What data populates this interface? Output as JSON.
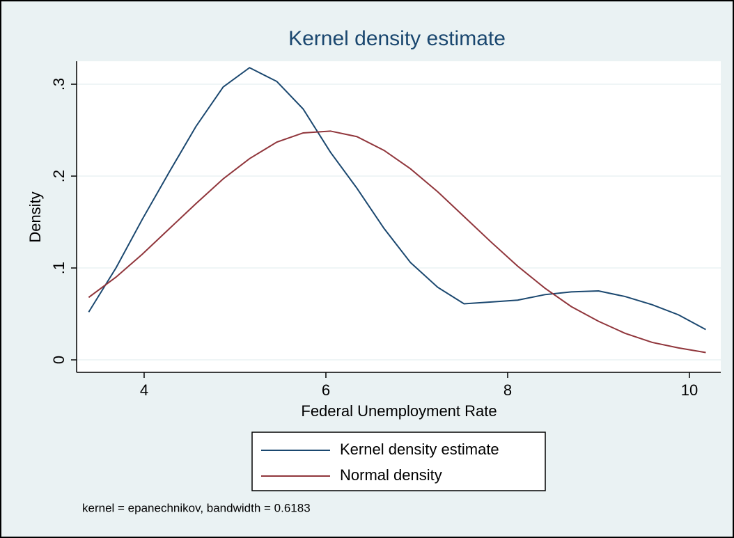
{
  "chart_data": {
    "type": "line",
    "title": "Kernel density estimate",
    "x_label": "Federal Unemployment Rate",
    "y_label": "Density",
    "note": "kernel = epanechnikov, bandwidth = 0.6183",
    "xlim": [
      3.257,
      10.345
    ],
    "ylim": [
      -0.0136,
      0.325
    ],
    "xticks": [
      4,
      6,
      8,
      10
    ],
    "yticks": [
      0,
      {
        "value": 0.1,
        "label": ".1"
      },
      {
        "value": 0.2,
        "label": ".2"
      },
      {
        "value": 0.3,
        "label": ".3"
      }
    ],
    "grid": true,
    "legend": "bottom",
    "x": [
      3.39,
      3.69,
      3.98,
      4.28,
      4.57,
      4.87,
      5.16,
      5.46,
      5.75,
      6.05,
      6.34,
      6.64,
      6.93,
      7.23,
      7.52,
      7.82,
      8.11,
      8.41,
      8.7,
      9.0,
      9.29,
      9.59,
      9.88,
      10.18
    ],
    "series": [
      {
        "name": "Kernel density estimate",
        "color": "#1a476f",
        "values": [
          0.052,
          0.1,
          0.153,
          0.205,
          0.254,
          0.297,
          0.318,
          0.303,
          0.273,
          0.226,
          0.187,
          0.143,
          0.106,
          0.079,
          0.061,
          0.063,
          0.065,
          0.071,
          0.074,
          0.075,
          0.069,
          0.06,
          0.049,
          0.033
        ]
      },
      {
        "name": "Normal density",
        "color": "#90353b",
        "values": [
          0.068,
          0.09,
          0.115,
          0.143,
          0.17,
          0.197,
          0.219,
          0.237,
          0.247,
          0.249,
          0.243,
          0.228,
          0.208,
          0.183,
          0.156,
          0.128,
          0.102,
          0.078,
          0.058,
          0.042,
          0.029,
          0.019,
          0.013,
          0.008
        ]
      }
    ]
  }
}
